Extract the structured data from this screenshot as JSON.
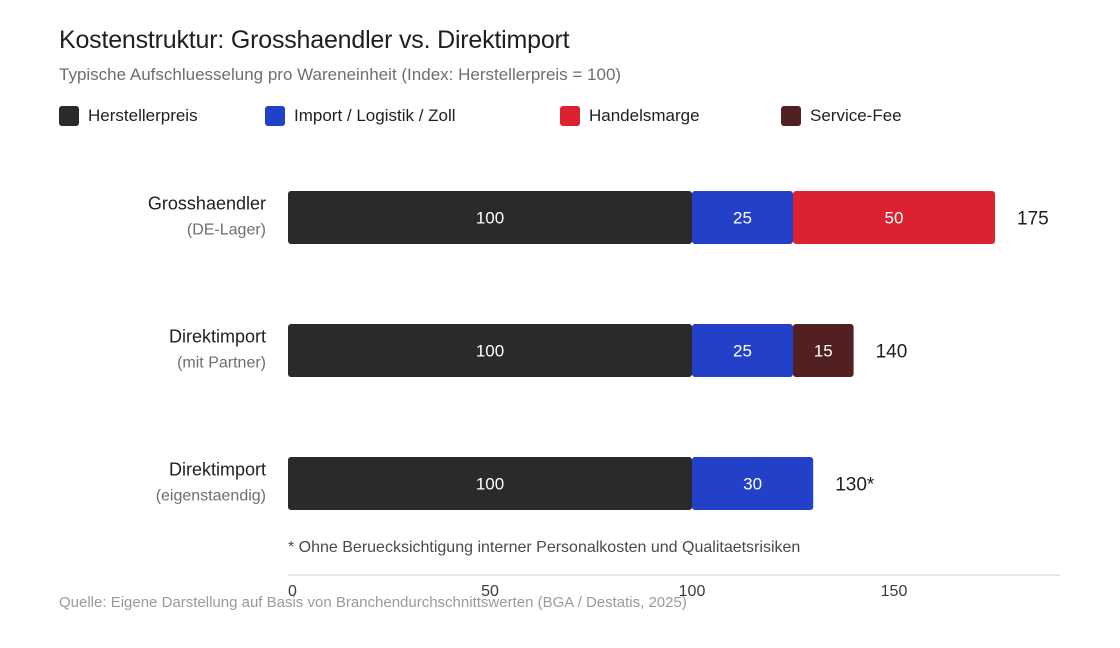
{
  "colors": {
    "Herstellerpreis": "#2a2a2c",
    "Import / Logistik / Zoll": "#2341c8",
    "Handelsmarge": "#dc2230",
    "Service-Fee": "#532021"
  },
  "chart_data": {
    "type": "bar",
    "orientation": "horizontal",
    "stacked": true,
    "title": "Kostenstruktur: Grosshaendler vs. Direktimport",
    "subtitle": "Typische Aufschluesselung pro Wareneinheit (Index: Herstellerpreis = 100)",
    "legend": [
      "Herstellerpreis",
      "Import / Logistik / Zoll",
      "Handelsmarge",
      "Service-Fee"
    ],
    "legend_position": "top-left",
    "xlim": [
      0,
      185
    ],
    "xticks": [
      0,
      50,
      100,
      150
    ],
    "grid": false,
    "categories": [
      {
        "label": "Grosshaendler",
        "sublabel": "(DE-Lager)",
        "total_label": "175",
        "segments": [
          {
            "series": "Herstellerpreis",
            "value": 100
          },
          {
            "series": "Import / Logistik / Zoll",
            "value": 25
          },
          {
            "series": "Handelsmarge",
            "value": 50
          }
        ]
      },
      {
        "label": "Direktimport",
        "sublabel": "(mit Partner)",
        "total_label": "140",
        "segments": [
          {
            "series": "Herstellerpreis",
            "value": 100
          },
          {
            "series": "Import / Logistik / Zoll",
            "value": 25
          },
          {
            "series": "Service-Fee",
            "value": 15
          }
        ]
      },
      {
        "label": "Direktimport",
        "sublabel": "(eigenstaendig)",
        "total_label": "130*",
        "segments": [
          {
            "series": "Herstellerpreis",
            "value": 100
          },
          {
            "series": "Import / Logistik / Zoll",
            "value": 30
          }
        ]
      }
    ],
    "footnote": "* Ohne Beruecksichtigung interner Personalkosten und Qualitaetsrisiken",
    "source": "Quelle: Eigene Darstellung auf Basis von Branchendurchschnittswerten (BGA / Destatis, 2025)"
  }
}
